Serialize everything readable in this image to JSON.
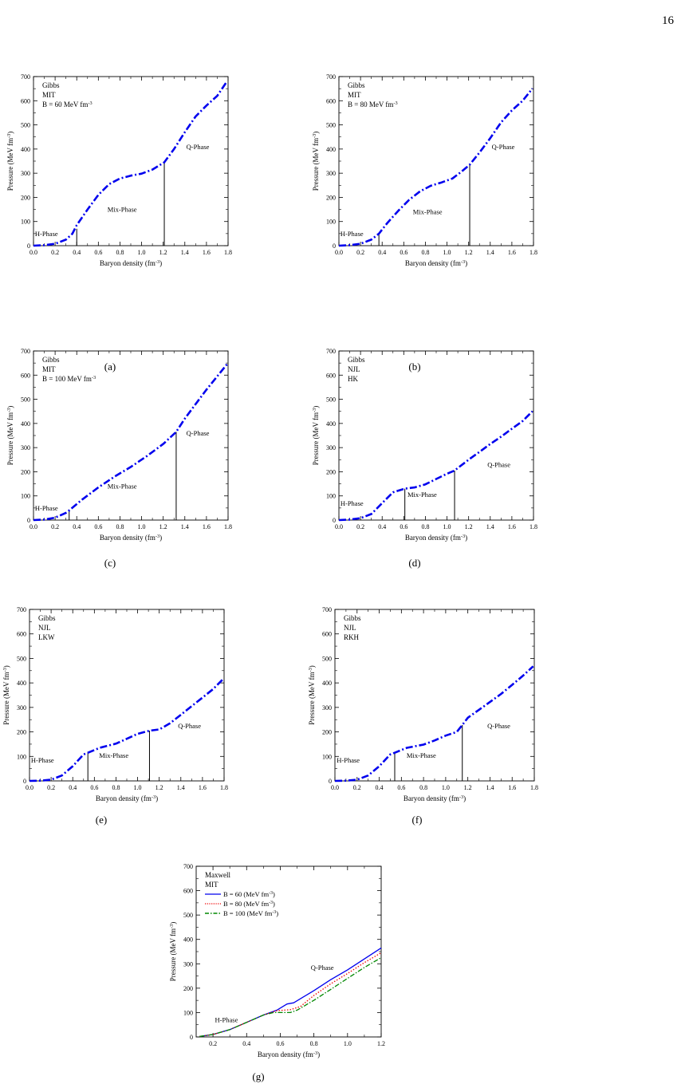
{
  "page": {
    "number": "16"
  },
  "chart_data": [
    {
      "id": "a",
      "caption": "(a)",
      "type": "line",
      "xlabel": "Baryon density (fm^-3)",
      "ylabel": "Pressure (MeV fm^-3)",
      "xlim": [
        0,
        1.8
      ],
      "ylim": [
        0,
        700
      ],
      "xticks": [
        0.0,
        0.2,
        0.4,
        0.6,
        0.8,
        1.0,
        1.2,
        1.4,
        1.6,
        1.8
      ],
      "yticks": [
        0,
        100,
        200,
        300,
        400,
        500,
        600,
        700
      ],
      "legend_lines": [
        "Gibbs",
        "MIT",
        "B = 60 MeV fm^-3"
      ],
      "phase_labels": [
        {
          "text": "H-Phase",
          "x": 0.12,
          "y": 40
        },
        {
          "text": "Mix-Phase",
          "x": 0.82,
          "y": 140
        },
        {
          "text": "Q-Phase",
          "x": 1.52,
          "y": 400
        }
      ],
      "boundaries": [
        {
          "x": 0.4,
          "y": 70
        },
        {
          "x": 1.21,
          "y": 345
        }
      ],
      "series": [
        {
          "style": "dashdot",
          "color": "#0000ee",
          "x": [
            0,
            0.1,
            0.2,
            0.3,
            0.36,
            0.4,
            0.5,
            0.6,
            0.7,
            0.8,
            0.9,
            1.0,
            1.1,
            1.21,
            1.3,
            1.4,
            1.5,
            1.6,
            1.7,
            1.79
          ],
          "y": [
            0,
            2,
            8,
            25,
            50,
            85,
            150,
            210,
            255,
            278,
            290,
            298,
            315,
            345,
            400,
            470,
            535,
            580,
            620,
            680
          ]
        }
      ]
    },
    {
      "id": "b",
      "caption": "(b)",
      "type": "line",
      "xlabel": "Baryon density (fm^-3)",
      "ylabel": "Pressure (MeV fm^-3)",
      "xlim": [
        0,
        1.8
      ],
      "ylim": [
        0,
        700
      ],
      "xticks": [
        0.0,
        0.2,
        0.4,
        0.6,
        0.8,
        1.0,
        1.2,
        1.4,
        1.6,
        1.8
      ],
      "yticks": [
        0,
        100,
        200,
        300,
        400,
        500,
        600,
        700
      ],
      "legend_lines": [
        "Gibbs",
        "MIT",
        "B = 80 MeV fm^-3"
      ],
      "phase_labels": [
        {
          "text": "H-Phase",
          "x": 0.12,
          "y": 40
        },
        {
          "text": "Mix-Phase",
          "x": 0.82,
          "y": 130
        },
        {
          "text": "Q-Phase",
          "x": 1.52,
          "y": 400
        }
      ],
      "boundaries": [
        {
          "x": 0.37,
          "y": 50
        },
        {
          "x": 1.21,
          "y": 335
        }
      ],
      "series": [
        {
          "style": "dashdot",
          "color": "#0000ee",
          "x": [
            0,
            0.1,
            0.2,
            0.3,
            0.37,
            0.45,
            0.55,
            0.65,
            0.75,
            0.85,
            0.95,
            1.05,
            1.13,
            1.21,
            1.3,
            1.4,
            1.5,
            1.6,
            1.7,
            1.79
          ],
          "y": [
            0,
            2,
            8,
            25,
            50,
            95,
            145,
            190,
            225,
            248,
            262,
            278,
            305,
            335,
            385,
            445,
            510,
            560,
            600,
            650
          ]
        }
      ]
    },
    {
      "id": "c",
      "caption": "(c)",
      "type": "line",
      "xlabel": "Baryon density (fm^-3)",
      "ylabel": "Pressure (MeV fm^-3)",
      "xlim": [
        0,
        1.8
      ],
      "ylim": [
        0,
        700
      ],
      "xticks": [
        0.0,
        0.2,
        0.4,
        0.6,
        0.8,
        1.0,
        1.2,
        1.4,
        1.6,
        1.8
      ],
      "yticks": [
        0,
        100,
        200,
        300,
        400,
        500,
        600,
        700
      ],
      "legend_lines": [
        "Gibbs",
        "MIT",
        "B = 100 MeV fm^-3"
      ],
      "phase_labels": [
        {
          "text": "H-Phase",
          "x": 0.12,
          "y": 40
        },
        {
          "text": "Mix-Phase",
          "x": 0.82,
          "y": 130
        },
        {
          "text": "Q-Phase",
          "x": 1.52,
          "y": 350
        }
      ],
      "boundaries": [
        {
          "x": 0.33,
          "y": 40
        },
        {
          "x": 1.32,
          "y": 365
        }
      ],
      "series": [
        {
          "style": "dashdot",
          "color": "#0000ee",
          "x": [
            0,
            0.1,
            0.2,
            0.3,
            0.33,
            0.45,
            0.6,
            0.75,
            0.9,
            1.05,
            1.2,
            1.32,
            1.4,
            1.5,
            1.6,
            1.7,
            1.79
          ],
          "y": [
            0,
            2,
            10,
            30,
            40,
            85,
            135,
            180,
            220,
            265,
            315,
            365,
            420,
            480,
            540,
            595,
            645
          ]
        }
      ]
    },
    {
      "id": "d",
      "caption": "(d)",
      "type": "line",
      "xlabel": "Baryon density (fm^-3)",
      "ylabel": "Pressure (MeV fm^-3)",
      "xlim": [
        0,
        1.8
      ],
      "ylim": [
        0,
        700
      ],
      "xticks": [
        0.0,
        0.2,
        0.4,
        0.6,
        0.8,
        1.0,
        1.2,
        1.4,
        1.6,
        1.8
      ],
      "yticks": [
        0,
        100,
        200,
        300,
        400,
        500,
        600,
        700
      ],
      "legend_lines": [
        "Gibbs",
        "NJL",
        "HK"
      ],
      "phase_labels": [
        {
          "text": "H-Phase",
          "x": 0.12,
          "y": 60
        },
        {
          "text": "Mix-Phase",
          "x": 0.77,
          "y": 95
        },
        {
          "text": "Q-Phase",
          "x": 1.48,
          "y": 220
        }
      ],
      "boundaries": [
        {
          "x": 0.61,
          "y": 130
        },
        {
          "x": 1.07,
          "y": 205
        }
      ],
      "series": [
        {
          "style": "dashdot",
          "color": "#0000ee",
          "x": [
            0,
            0.1,
            0.2,
            0.3,
            0.4,
            0.5,
            0.61,
            0.7,
            0.8,
            0.9,
            1.0,
            1.07,
            1.2,
            1.3,
            1.4,
            1.5,
            1.6,
            1.7,
            1.79
          ],
          "y": [
            0,
            2,
            8,
            25,
            70,
            115,
            130,
            135,
            148,
            170,
            192,
            205,
            250,
            282,
            315,
            345,
            378,
            410,
            450
          ]
        }
      ]
    },
    {
      "id": "e",
      "caption": "(e)",
      "type": "line",
      "xlabel": "Baryon density (fm^-3)",
      "ylabel": "Pressure (MeV fm^-3)",
      "xlim": [
        0,
        1.8
      ],
      "ylim": [
        0,
        700
      ],
      "xticks": [
        0.0,
        0.2,
        0.4,
        0.6,
        0.8,
        1.0,
        1.2,
        1.4,
        1.6,
        1.8
      ],
      "yticks": [
        0,
        100,
        200,
        300,
        400,
        500,
        600,
        700
      ],
      "legend_lines": [
        "Gibbs",
        "NJL",
        "LKW"
      ],
      "phase_labels": [
        {
          "text": "H-Phase",
          "x": 0.12,
          "y": 75
        },
        {
          "text": "Mix-Phase",
          "x": 0.78,
          "y": 95
        },
        {
          "text": "Q-Phase",
          "x": 1.48,
          "y": 215
        }
      ],
      "boundaries": [
        {
          "x": 0.54,
          "y": 115
        },
        {
          "x": 1.11,
          "y": 205
        }
      ],
      "series": [
        {
          "style": "dashdot",
          "color": "#0000ee",
          "x": [
            0,
            0.1,
            0.2,
            0.3,
            0.4,
            0.5,
            0.54,
            0.65,
            0.8,
            0.9,
            1.0,
            1.11,
            1.2,
            1.3,
            1.4,
            1.5,
            1.6,
            1.7,
            1.79
          ],
          "y": [
            0,
            1,
            5,
            22,
            60,
            108,
            115,
            135,
            152,
            172,
            192,
            205,
            210,
            235,
            270,
            305,
            340,
            375,
            415
          ]
        }
      ]
    },
    {
      "id": "f",
      "caption": "(f)",
      "type": "line",
      "xlabel": "Baryon density (fm^-3)",
      "ylabel": "Pressure (MeV fm^-3)",
      "xlim": [
        0,
        1.8
      ],
      "ylim": [
        0,
        700
      ],
      "xticks": [
        0.0,
        0.2,
        0.4,
        0.6,
        0.8,
        1.0,
        1.2,
        1.4,
        1.6,
        1.8
      ],
      "yticks": [
        0,
        100,
        200,
        300,
        400,
        500,
        600,
        700
      ],
      "legend_lines": [
        "Gibbs",
        "NJL",
        "RKH"
      ],
      "phase_labels": [
        {
          "text": "H-Phase",
          "x": 0.12,
          "y": 75
        },
        {
          "text": "Mix-Phase",
          "x": 0.78,
          "y": 95
        },
        {
          "text": "Q-Phase",
          "x": 1.48,
          "y": 215
        }
      ],
      "boundaries": [
        {
          "x": 0.54,
          "y": 115
        },
        {
          "x": 1.15,
          "y": 228
        }
      ],
      "series": [
        {
          "style": "dashdot",
          "color": "#0000ee",
          "x": [
            0,
            0.1,
            0.2,
            0.3,
            0.4,
            0.5,
            0.54,
            0.65,
            0.8,
            0.9,
            1.0,
            1.1,
            1.15,
            1.2,
            1.3,
            1.4,
            1.5,
            1.6,
            1.7,
            1.79
          ],
          "y": [
            0,
            1,
            5,
            22,
            60,
            108,
            115,
            135,
            148,
            165,
            185,
            200,
            228,
            258,
            290,
            322,
            355,
            392,
            430,
            468
          ]
        }
      ]
    },
    {
      "id": "g",
      "caption": "(g)",
      "type": "line",
      "xlabel": "Baryon density (fm^-3)",
      "ylabel": "Pressure (MeV fm^-3)",
      "xlim": [
        0.1,
        1.2
      ],
      "ylim": [
        0,
        700
      ],
      "xticks": [
        0.2,
        0.4,
        0.6,
        0.8,
        1.0,
        1.2
      ],
      "yticks": [
        0,
        100,
        200,
        300,
        400,
        500,
        600,
        700
      ],
      "legend_lines": [
        "Maxwell",
        "MIT"
      ],
      "legend_position": "top-left",
      "phase_labels": [
        {
          "text": "H-Phase",
          "x": 0.28,
          "y": 60
        },
        {
          "text": "Q-Phase",
          "x": 0.85,
          "y": 275
        }
      ],
      "boundaries": [],
      "series": [
        {
          "name": "B = 60 (MeV fm^-3)",
          "style": "solid",
          "color": "#0000ee",
          "x": [
            0.12,
            0.2,
            0.3,
            0.4,
            0.5,
            0.58,
            0.64,
            0.68,
            0.8,
            0.9,
            1.0,
            1.1,
            1.2
          ],
          "y": [
            2,
            10,
            30,
            60,
            90,
            110,
            135,
            140,
            190,
            235,
            275,
            320,
            365
          ]
        },
        {
          "name": "B = 80 (MeV fm^-3)",
          "style": "dotted",
          "color": "#ee0000",
          "x": [
            0.12,
            0.2,
            0.3,
            0.4,
            0.5,
            0.58,
            0.66,
            0.72,
            0.8,
            0.9,
            1.0,
            1.1,
            1.2
          ],
          "y": [
            2,
            10,
            30,
            60,
            90,
            108,
            112,
            125,
            170,
            218,
            260,
            305,
            345
          ]
        },
        {
          "name": "B = 100 (MeV fm^-3)",
          "style": "dashdot",
          "color": "#008800",
          "x": [
            0.12,
            0.2,
            0.3,
            0.4,
            0.5,
            0.56,
            0.66,
            0.7,
            0.8,
            0.9,
            1.0,
            1.1,
            1.2
          ],
          "y": [
            2,
            10,
            30,
            60,
            90,
            100,
            100,
            110,
            150,
            195,
            240,
            285,
            325
          ]
        }
      ]
    }
  ]
}
